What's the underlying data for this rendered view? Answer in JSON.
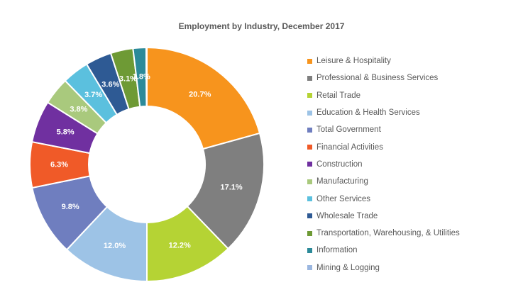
{
  "chart_data": {
    "type": "pie",
    "variant": "donut",
    "title": "Employment by Industry, December 2017",
    "legend_position": "right",
    "slices": [
      {
        "name": "Leisure & Hospitality",
        "value": 20.7,
        "label": "20.7%",
        "color": "#F7941D"
      },
      {
        "name": "Professional & Business Services",
        "value": 17.1,
        "label": "17.1%",
        "color": "#7F7F7F"
      },
      {
        "name": "Retail Trade",
        "value": 12.2,
        "label": "12.2%",
        "color": "#B5D334"
      },
      {
        "name": "Education & Health Services",
        "value": 12.0,
        "label": "12.0%",
        "color": "#9DC3E6"
      },
      {
        "name": "Total Government",
        "value": 9.8,
        "label": "9.8%",
        "color": "#6F7EBF"
      },
      {
        "name": "Financial Activities",
        "value": 6.3,
        "label": "6.3%",
        "color": "#F05A28"
      },
      {
        "name": "Construction",
        "value": 5.8,
        "label": "5.8%",
        "color": "#7030A0"
      },
      {
        "name": "Manufacturing",
        "value": 3.8,
        "label": "3.8%",
        "color": "#A9C97D"
      },
      {
        "name": "Other Services",
        "value": 3.7,
        "label": "3.7%",
        "color": "#5BC0DE"
      },
      {
        "name": "Wholesale Trade",
        "value": 3.6,
        "label": "3.6%",
        "color": "#2E5A94"
      },
      {
        "name": "Transportation, Warehousing, & Utilities",
        "value": 3.1,
        "label": "3.1%",
        "color": "#6E9A35"
      },
      {
        "name": "Information",
        "value": 1.8,
        "label": "1.8%",
        "color": "#2C8A99"
      },
      {
        "name": "Mining & Logging",
        "value": 0.1,
        "label": "",
        "color": "#9BB7E0"
      }
    ]
  }
}
